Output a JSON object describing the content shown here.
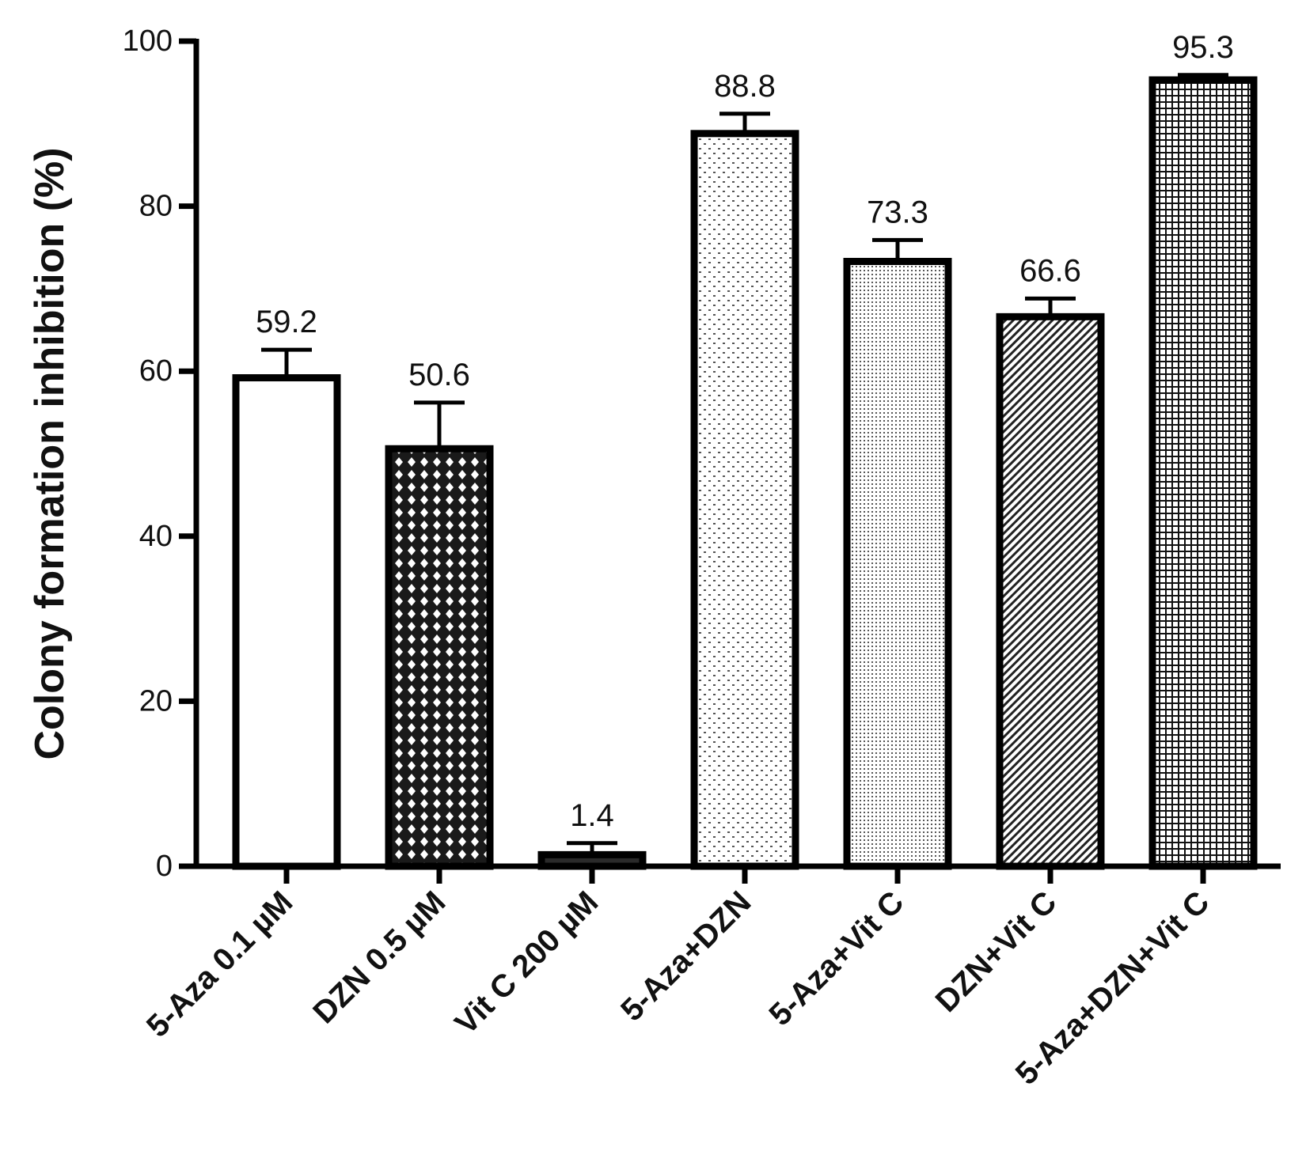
{
  "chart_data": {
    "type": "bar",
    "categories": [
      "5-Aza 0.1 µM",
      "DZN 0.5 µM",
      "Vit C 200 µM",
      "5-Aza+DZN",
      "5-Aza+Vit C",
      "DZN+Vit C",
      "5-Aza+DZN+Vit C"
    ],
    "values": [
      59.2,
      50.6,
      1.4,
      88.8,
      73.3,
      66.6,
      95.3
    ],
    "value_labels": [
      "59.2",
      "50.6",
      "1.4",
      "88.8",
      "73.3",
      "66.6",
      "95.3"
    ],
    "error_upper": [
      62.6,
      56.2,
      2.8,
      91.2,
      75.9,
      68.8,
      95.9
    ],
    "patterns": [
      "none",
      "diamond-lattice",
      "dark",
      "sparse-dots",
      "fine-dots",
      "diagonal-hatch",
      "grid"
    ],
    "title": "",
    "xlabel": "",
    "ylabel": "Colony formation inhibition (%)",
    "ylim": [
      0,
      100
    ],
    "yticks": [
      0,
      20,
      40,
      60,
      80,
      100
    ],
    "grid": false,
    "legend": "none",
    "colors": {
      "stroke": "#000000",
      "fill": "#ffffff"
    }
  }
}
